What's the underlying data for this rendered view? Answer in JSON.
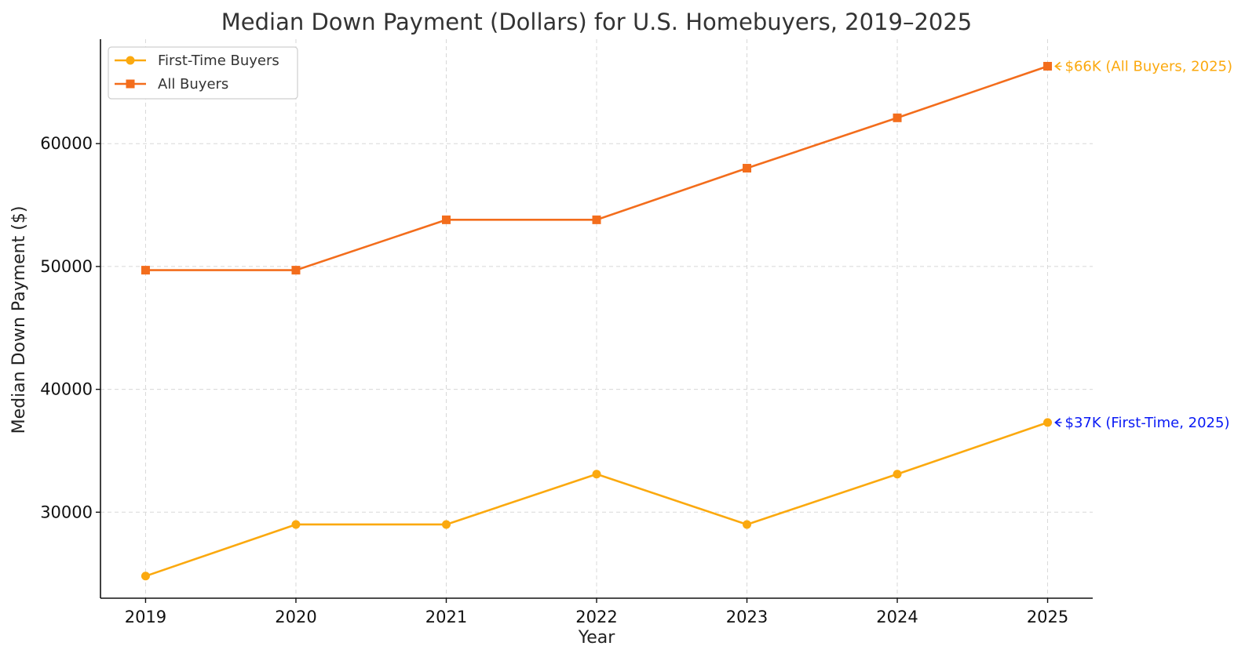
{
  "chart_data": {
    "type": "line",
    "title": "Median Down Payment (Dollars) for U.S. Homebuyers, 2019–2025",
    "xlabel": "Year",
    "ylabel": "Median Down Payment ($)",
    "x": [
      2019,
      2020,
      2021,
      2022,
      2023,
      2024,
      2025
    ],
    "xlim": [
      2018.7,
      2025.3
    ],
    "ylim": [
      23000,
      68500
    ],
    "yticks": [
      30000,
      40000,
      50000,
      60000
    ],
    "grid": true,
    "legend_position": "top-left",
    "series": [
      {
        "name": "First-Time Buyers",
        "color": "#fba90f",
        "marker": "circle",
        "values": [
          24800,
          29000,
          29000,
          33100,
          29000,
          33100,
          37300
        ]
      },
      {
        "name": "All Buyers",
        "color": "#f36d1c",
        "marker": "square",
        "values": [
          49700,
          49700,
          53800,
          53800,
          58000,
          62100,
          66300
        ]
      }
    ],
    "annotations": [
      {
        "text": "$66K (All Buyers, 2025)",
        "x": 2025,
        "y": 66300,
        "color": "#fba90f"
      },
      {
        "text": "$37K (First-Time, 2025)",
        "x": 2025,
        "y": 37300,
        "color": "#0a1af5"
      }
    ]
  }
}
